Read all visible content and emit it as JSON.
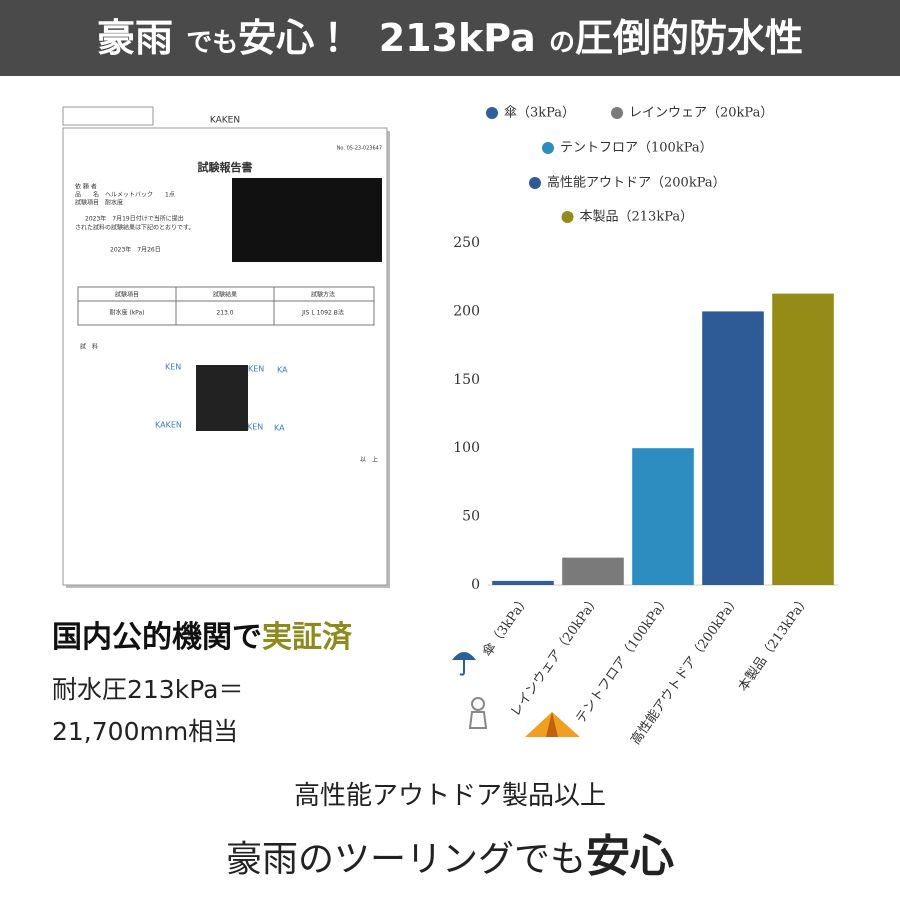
{
  "header": {
    "parts": [
      "豪雨",
      "でも",
      "安心！",
      "213kPa",
      "の",
      "圧倒的防水性"
    ]
  },
  "report": {
    "org": "KAKEN",
    "number": "No. 05-23-023647",
    "title": "試験報告書",
    "fields": [
      "依 頼 者",
      "品　　名　ヘルメットバック　　1点",
      "試験項目　耐水度"
    ],
    "statement": [
      "2023年　7月19日付けで当所に提出",
      "された試料の試験結果は下記のとおりです。"
    ],
    "date": "2023年　7月26日",
    "table": {
      "header": [
        "試験項目",
        "試験結果",
        "試験方法"
      ],
      "row": [
        "耐水度 (kPa)",
        "213.0",
        "JIS L 1092 B法"
      ]
    },
    "sample_label": "試　料",
    "sample_marks": [
      "KEN",
      "KEN",
      "KA",
      "KAKEN",
      "KEN",
      "KA"
    ],
    "end": "以　上"
  },
  "caption": {
    "title_a": "国内公的機関で",
    "title_b": "実証済",
    "line1": "耐水圧213kPa＝",
    "line2": "21,700mm相当"
  },
  "chart_data": {
    "type": "bar",
    "categories": [
      "傘（3kPa）",
      "レインウェア（20kPa）",
      "テントフロア（100kPa）",
      "高性能アウトドア（200kPa）",
      "本製品（213kPa）"
    ],
    "values": [
      3,
      20,
      100,
      200,
      213
    ],
    "colors": [
      "#2e5f9c",
      "#7a7a7a",
      "#2d8dc0",
      "#2e5b96",
      "#958c17"
    ],
    "ylim": [
      0,
      250
    ],
    "yticks": [
      0,
      50,
      100,
      150,
      200,
      250
    ],
    "grid": false
  },
  "footer": {
    "line1": "高性能アウトドア製品以上",
    "line2_a": "豪雨のツーリングでも",
    "line2_b": "安心"
  }
}
